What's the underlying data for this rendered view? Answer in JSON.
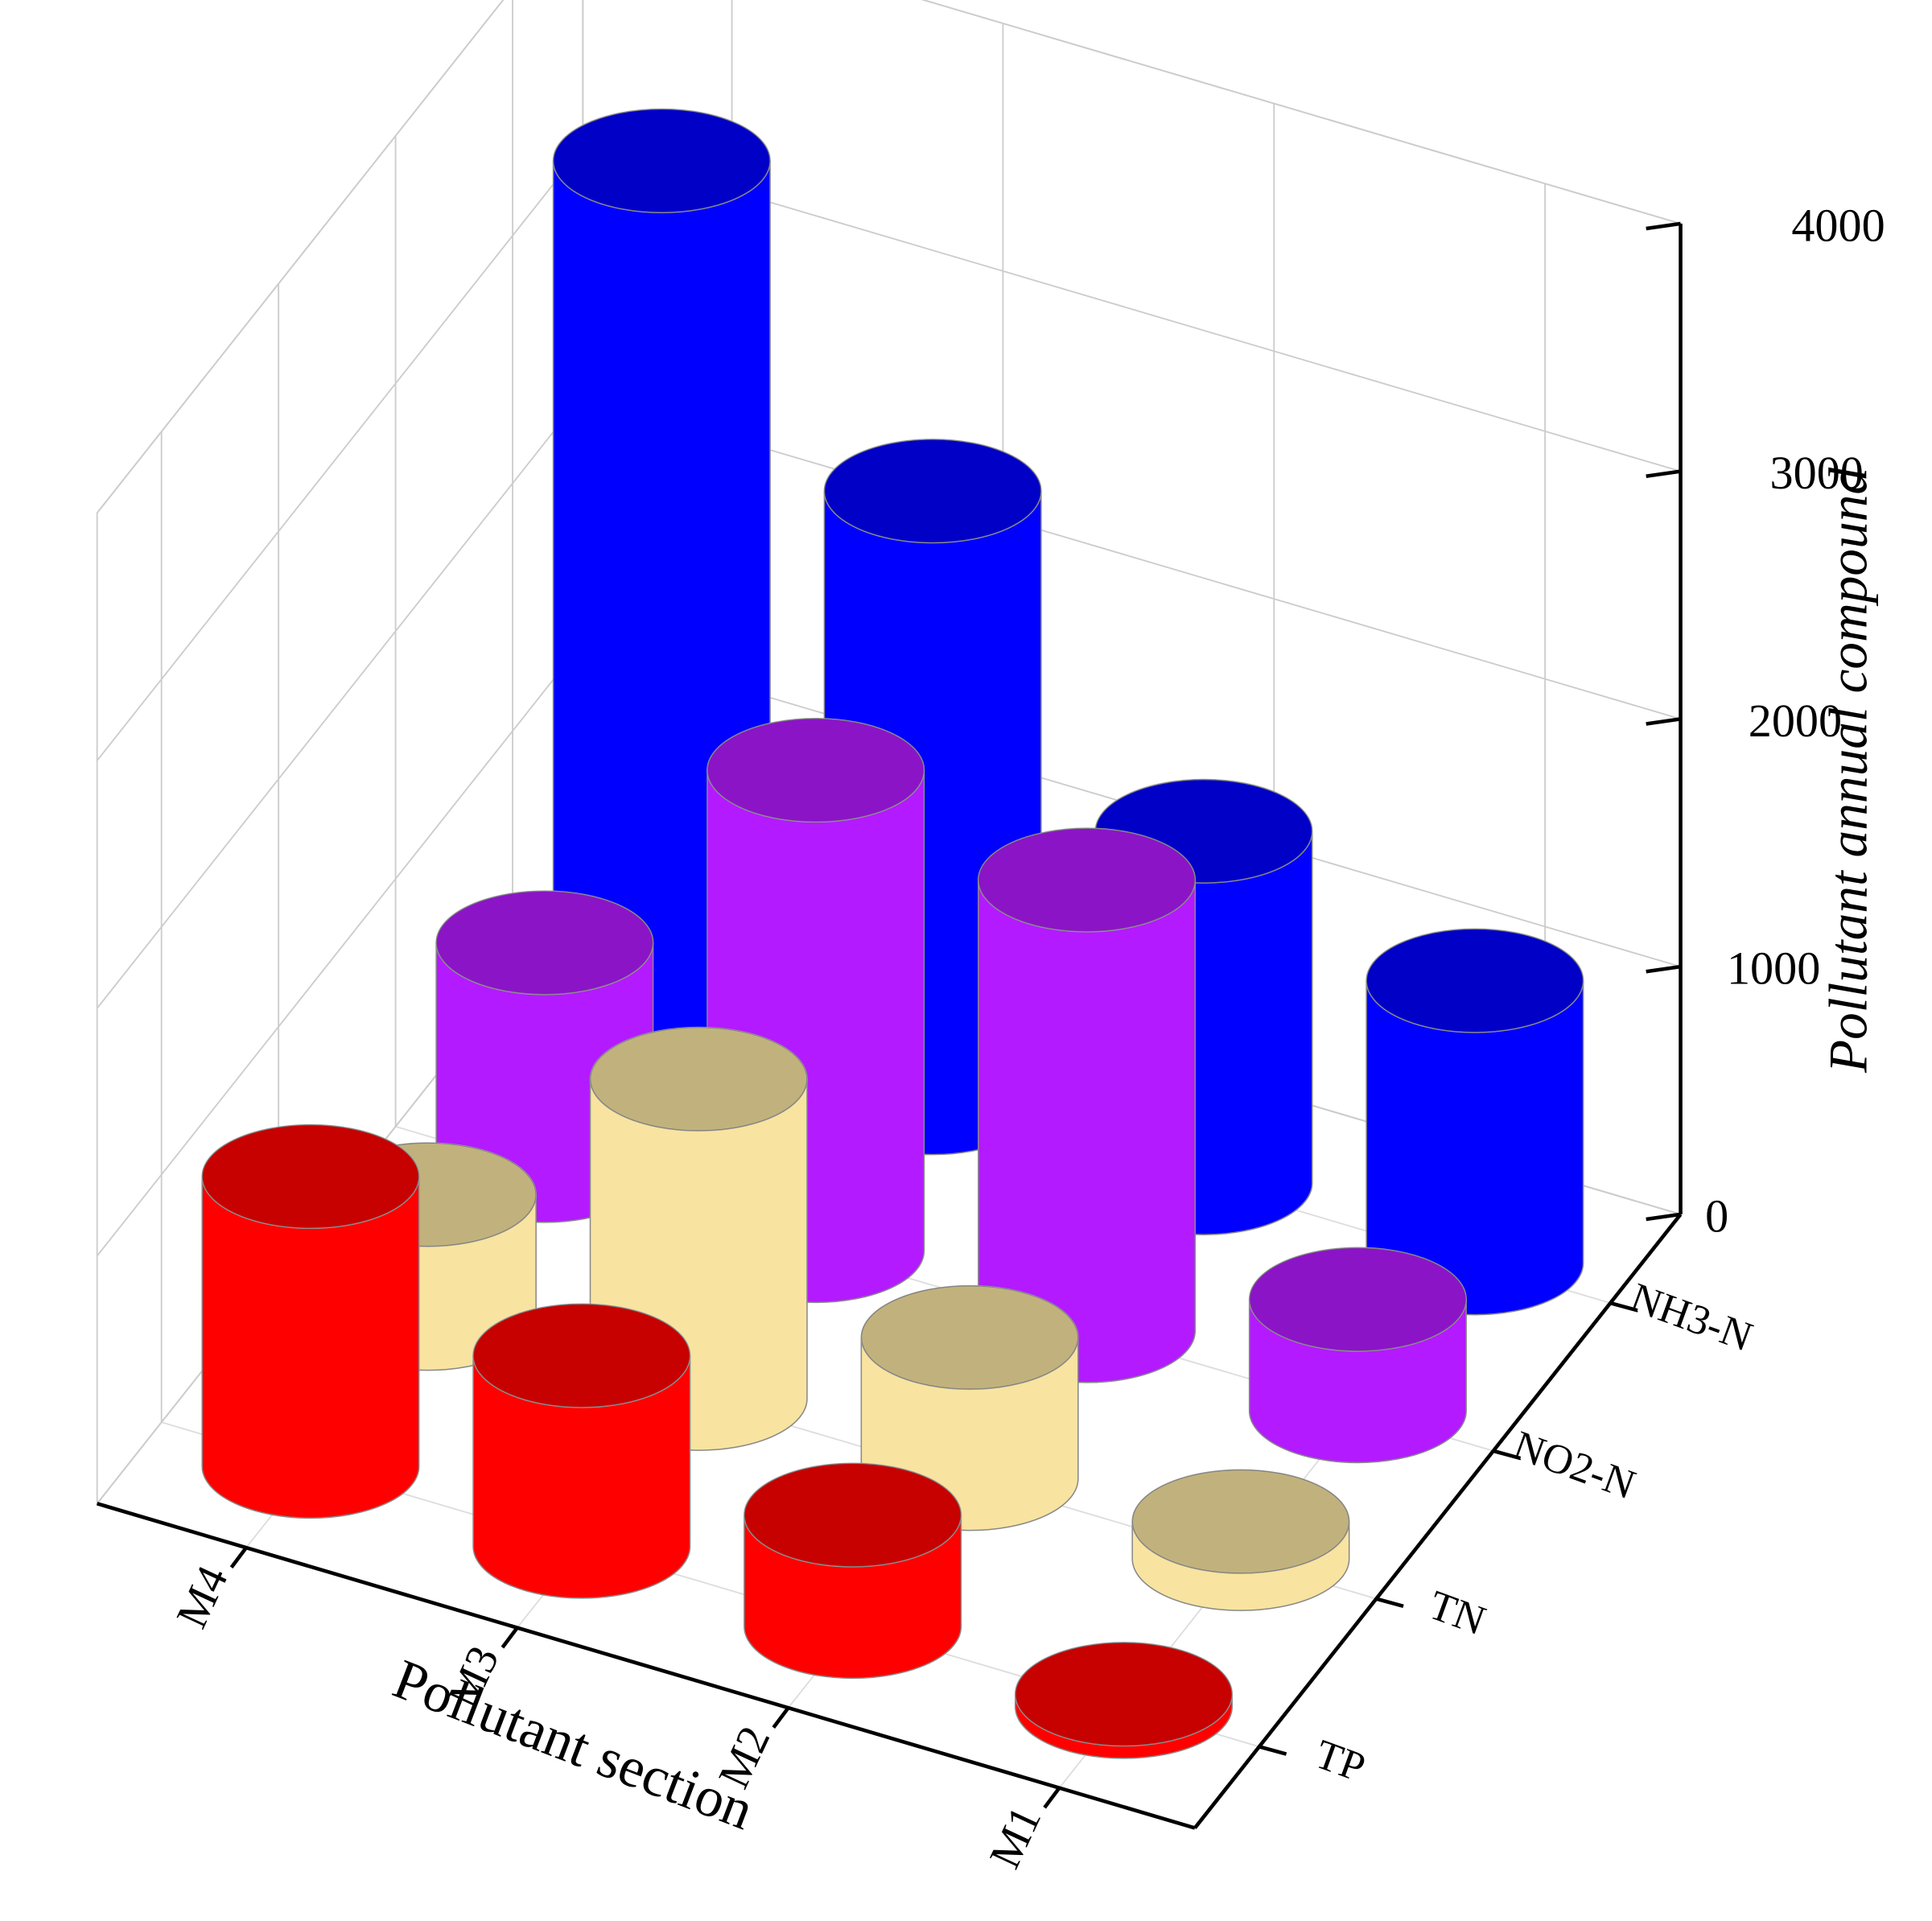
{
  "chart_data": {
    "type": "bar3d",
    "xlabel": "Pollutant section",
    "zlabel": "Pollutant annual compound",
    "categories": [
      "M4",
      "M3",
      "M2",
      "M1"
    ],
    "series": [
      {
        "name": "NH3-N",
        "color": "#0000ff",
        "values": [
          3480,
          2470,
          1420,
          1140
        ]
      },
      {
        "name": "NO2-N",
        "color": "#b31aff",
        "values": [
          920,
          1940,
          1820,
          450
        ]
      },
      {
        "name": "TN",
        "color": "#f8e4a0",
        "values": [
          500,
          1290,
          570,
          150
        ]
      },
      {
        "name": "TP",
        "color": "#ff0000",
        "values": [
          1170,
          770,
          450,
          50
        ]
      }
    ],
    "zlim": [
      0,
      4000
    ],
    "zticks": [
      0,
      1000,
      2000,
      3000,
      4000
    ],
    "grid": true
  }
}
